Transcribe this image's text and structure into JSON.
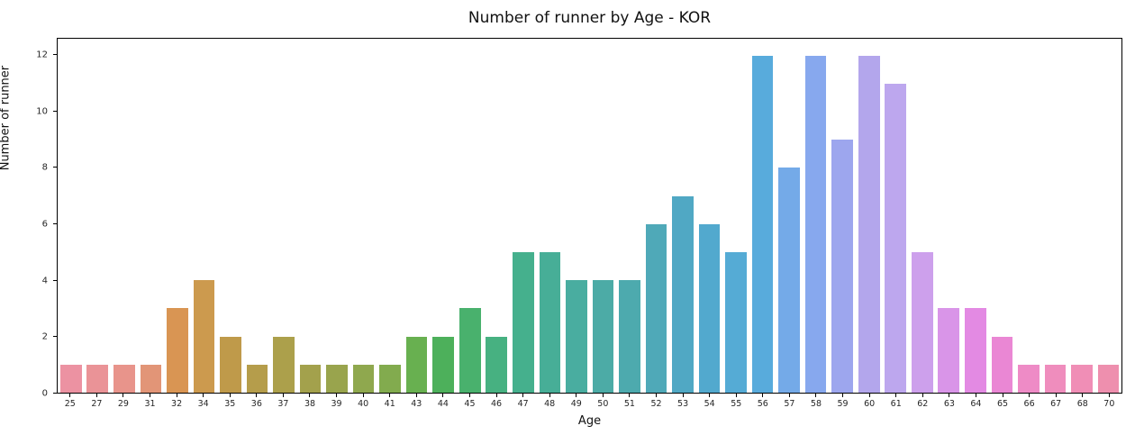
{
  "chart_data": {
    "type": "bar",
    "title": "Number of runner by Age - KOR",
    "xlabel": "Age",
    "ylabel": "Number of runner",
    "categories": [
      "25",
      "27",
      "29",
      "31",
      "32",
      "34",
      "35",
      "36",
      "37",
      "38",
      "39",
      "40",
      "41",
      "43",
      "44",
      "45",
      "46",
      "47",
      "48",
      "49",
      "50",
      "51",
      "52",
      "53",
      "54",
      "55",
      "56",
      "57",
      "58",
      "59",
      "60",
      "61",
      "62",
      "63",
      "64",
      "65",
      "66",
      "67",
      "68",
      "70"
    ],
    "values": [
      1,
      1,
      1,
      1,
      3,
      4,
      2,
      1,
      2,
      1,
      1,
      1,
      1,
      2,
      2,
      3,
      2,
      5,
      5,
      4,
      4,
      4,
      6,
      7,
      6,
      5,
      12,
      8,
      12,
      9,
      12,
      11,
      5,
      3,
      3,
      2,
      1,
      1,
      1,
      1
    ],
    "bar_colors": [
      "#ec92a2",
      "#ea9397",
      "#e8948b",
      "#e29577",
      "#d99553",
      "#cc9a4e",
      "#bf9a4a",
      "#b59d4b",
      "#aca04b",
      "#a3a14c",
      "#99a44d",
      "#8fa84e",
      "#82ab4e",
      "#68b050",
      "#4db05b",
      "#49b16d",
      "#47b181",
      "#45b08d",
      "#47ae97",
      "#49ada0",
      "#4caba6",
      "#4daaae",
      "#4fa9b8",
      "#50a8c4",
      "#52a9ce",
      "#55abd5",
      "#58abdc",
      "#74aae8",
      "#87a8ee",
      "#9da6ee",
      "#b3a6ec",
      "#bda7ee",
      "#cda0ec",
      "#d995e8",
      "#e38ae3",
      "#ea87d4",
      "#ee8bc6",
      "#ef8dbd",
      "#f08eb6",
      "#ee8fae"
    ],
    "yticks": [
      0,
      2,
      4,
      6,
      8,
      10,
      12
    ],
    "ylim": [
      0,
      12.6
    ],
    "grid": false,
    "legend": "none",
    "background_color": "#ffffff",
    "spine_color": "#000000",
    "text_color": "#262626"
  }
}
